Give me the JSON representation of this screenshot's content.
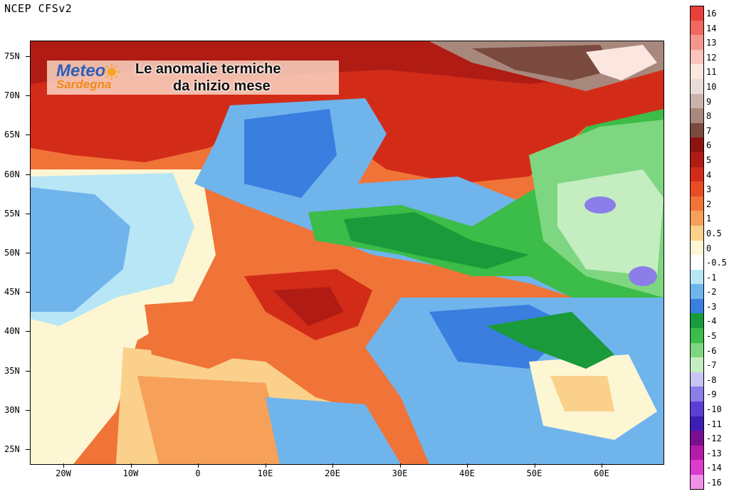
{
  "header": {
    "source": "NCEP CFSv2"
  },
  "logo": {
    "line1": "Meteo",
    "line2": "Sardegna"
  },
  "title": {
    "line1": "Le anomalie termiche",
    "line2": "da inizio mese"
  },
  "axes": {
    "lat_labels": [
      "75N",
      "70N",
      "65N",
      "60N",
      "55N",
      "50N",
      "45N",
      "40N",
      "35N",
      "30N",
      "25N"
    ],
    "lon_labels": [
      "20W",
      "10W",
      "0",
      "10E",
      "20E",
      "30E",
      "40E",
      "50E",
      "60E"
    ]
  },
  "legend": [
    {
      "label": "16",
      "color": "#e8413c"
    },
    {
      "label": "14",
      "color": "#f06860"
    },
    {
      "label": "13",
      "color": "#f49690"
    },
    {
      "label": "12",
      "color": "#f8c4bc"
    },
    {
      "label": "11",
      "color": "#fbe6e0"
    },
    {
      "label": "10",
      "color": "#e8dcd6"
    },
    {
      "label": "9",
      "color": "#c9b3aa"
    },
    {
      "label": "8",
      "color": "#a8887c"
    },
    {
      "label": "7",
      "color": "#7a4a3e"
    },
    {
      "label": "6",
      "color": "#8c1410"
    },
    {
      "label": "5",
      "color": "#b01c14"
    },
    {
      "label": "4",
      "color": "#d22c18"
    },
    {
      "label": "3",
      "color": "#e84c24"
    },
    {
      "label": "2",
      "color": "#f07438"
    },
    {
      "label": "1",
      "color": "#f6a05a"
    },
    {
      "label": "0.5",
      "color": "#fad08a"
    },
    {
      "label": "0",
      "color": "#fdf6d2"
    },
    {
      "label": "-0.5",
      "color": "#ffffff"
    },
    {
      "label": "-1",
      "color": "#b8e6f6"
    },
    {
      "label": "-2",
      "color": "#70b4ec"
    },
    {
      "label": "-3",
      "color": "#3a7ee0"
    },
    {
      "label": "-4",
      "color": "#1a9a3a"
    },
    {
      "label": "-5",
      "color": "#3cbc48"
    },
    {
      "label": "-6",
      "color": "#7ed680"
    },
    {
      "label": "-7",
      "color": "#c4eec0"
    },
    {
      "label": "-8",
      "color": "#c8c4f4"
    },
    {
      "label": "-9",
      "color": "#8c7ee8"
    },
    {
      "label": "-10",
      "color": "#5c3ed4"
    },
    {
      "label": "-11",
      "color": "#3c1eb4"
    },
    {
      "label": "-12",
      "color": "#7a1090"
    },
    {
      "label": "-13",
      "color": "#b41ca8"
    },
    {
      "label": "-14",
      "color": "#dc3ccc"
    },
    {
      "label": "-16",
      "color": "#f090e8"
    }
  ],
  "colors": {
    "warm": "#f07438",
    "hot": "#d22c18",
    "very_hot": "#b01c14",
    "mild": "#f6a05a",
    "light": "#fad08a",
    "neutral": "#fdf6d2",
    "cool": "#b8e6f6",
    "cold": "#70b4ec",
    "colder": "#3a7ee0",
    "green": "#3cbc48",
    "dark_green": "#1a9a3a",
    "light_green": "#7ed680",
    "pale_green": "#c4eec0",
    "purple": "#8c7ee8",
    "brown": "#a8887c",
    "dark_brown": "#7a4a3e",
    "pale_pink": "#fbe6e0"
  }
}
